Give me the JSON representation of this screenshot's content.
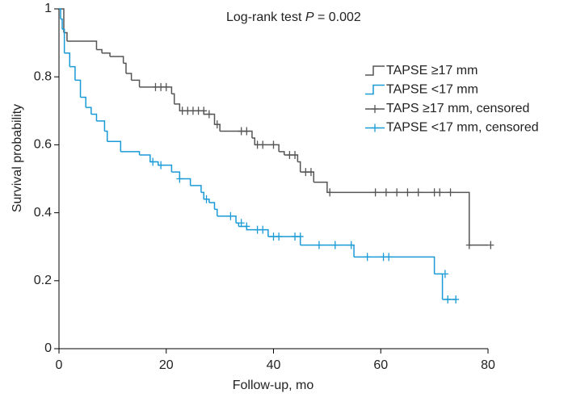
{
  "chart_data": {
    "type": "step",
    "annotation": {
      "text": "Log-rank test",
      "symbol": "P",
      "result": "= 0.002"
    },
    "x_label": "Follow-up, mo",
    "y_label": "Survival probability",
    "xlim": [
      0,
      80
    ],
    "xticks": [
      0,
      20,
      40,
      60,
      80
    ],
    "ylim": [
      0,
      1
    ],
    "yticks": [
      0,
      0.2,
      0.4,
      0.6,
      0.8,
      1
    ],
    "series": [
      {
        "name": "TAPSE ≥17 mm",
        "color": "#555555",
        "kind": "step",
        "x": [
          0,
          0.9,
          1.5,
          7,
          8,
          9.5,
          12,
          12.5,
          13.5,
          15,
          21,
          21.5,
          22.5,
          27,
          29,
          30,
          36,
          36.5,
          41,
          42,
          44.5,
          45,
          47.5,
          50,
          76.5,
          80
        ],
        "values": [
          1,
          0.93,
          0.905,
          0.88,
          0.87,
          0.86,
          0.84,
          0.81,
          0.79,
          0.77,
          0.75,
          0.72,
          0.7,
          0.69,
          0.66,
          0.64,
          0.62,
          0.6,
          0.58,
          0.57,
          0.55,
          0.52,
          0.49,
          0.46,
          0.305,
          0.305
        ]
      },
      {
        "name": "TAPSE <17 mm",
        "color": "#1a9ad6",
        "kind": "step",
        "x": [
          0,
          0.3,
          0.6,
          1,
          2,
          3,
          4,
          5,
          6,
          7,
          8.5,
          9,
          11.5,
          15,
          17,
          18.5,
          21,
          22.5,
          24.5,
          26.5,
          27,
          28,
          29,
          29.5,
          33,
          33.5,
          35,
          39,
          45,
          55,
          70,
          71.5,
          74
        ],
        "values": [
          1,
          0.97,
          0.94,
          0.87,
          0.83,
          0.79,
          0.74,
          0.71,
          0.69,
          0.67,
          0.64,
          0.61,
          0.58,
          0.57,
          0.55,
          0.54,
          0.52,
          0.5,
          0.48,
          0.46,
          0.44,
          0.43,
          0.41,
          0.39,
          0.37,
          0.36,
          0.35,
          0.33,
          0.305,
          0.27,
          0.22,
          0.145,
          0.145
        ]
      },
      {
        "name": "TAPS ≥17 mm, censored",
        "color": "#555555",
        "kind": "censored",
        "x": [
          18,
          19,
          20,
          23,
          24,
          25,
          26,
          27,
          28,
          29.5,
          34,
          35,
          37,
          38,
          40,
          43,
          44,
          46,
          47,
          50.5,
          59,
          61,
          63,
          65,
          67,
          70,
          71,
          73,
          76.5,
          80.5
        ],
        "values": [
          0.77,
          0.77,
          0.77,
          0.7,
          0.7,
          0.7,
          0.7,
          0.7,
          0.69,
          0.66,
          0.64,
          0.64,
          0.6,
          0.6,
          0.6,
          0.57,
          0.57,
          0.52,
          0.52,
          0.46,
          0.46,
          0.46,
          0.46,
          0.46,
          0.46,
          0.46,
          0.46,
          0.46,
          0.305,
          0.305
        ]
      },
      {
        "name": "TAPSE <17 mm, censored",
        "color": "#1a9ad6",
        "kind": "censored",
        "x": [
          17.5,
          19,
          22.5,
          27.5,
          32,
          34,
          35,
          37,
          38,
          40,
          41,
          44,
          45,
          48.5,
          51.5,
          54.5,
          57.5,
          60.5,
          61.5,
          72,
          72.5,
          74
        ],
        "values": [
          0.55,
          0.54,
          0.5,
          0.44,
          0.39,
          0.37,
          0.36,
          0.35,
          0.35,
          0.33,
          0.33,
          0.33,
          0.33,
          0.305,
          0.305,
          0.305,
          0.27,
          0.27,
          0.27,
          0.22,
          0.145,
          0.145
        ]
      }
    ]
  }
}
